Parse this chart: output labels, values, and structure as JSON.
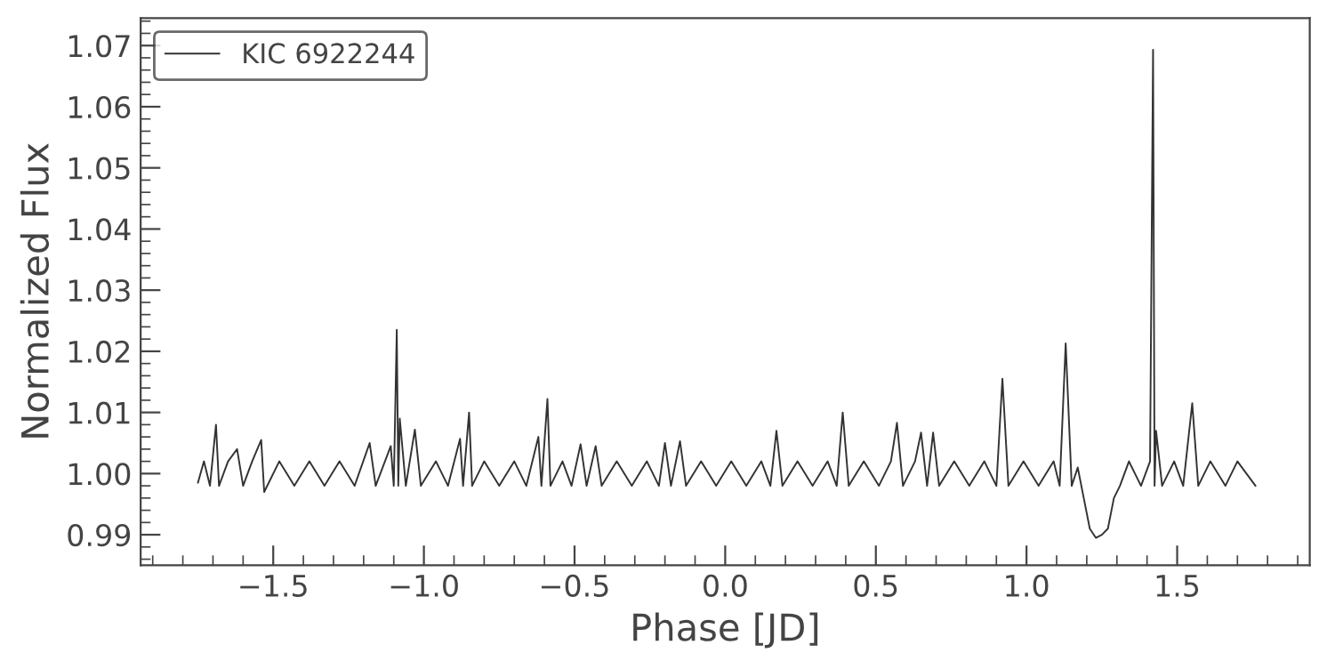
{
  "chart_data": {
    "type": "line",
    "xlabel": "Phase [JD]",
    "ylabel": "Normalized Flux",
    "x": [
      -1.75,
      -1.73,
      -1.71,
      -1.69,
      -1.68,
      -1.65,
      -1.62,
      -1.6,
      -1.57,
      -1.54,
      -1.53,
      -1.48,
      -1.43,
      -1.38,
      -1.33,
      -1.28,
      -1.23,
      -1.18,
      -1.16,
      -1.11,
      -1.1,
      -1.09,
      -1.085,
      -1.08,
      -1.06,
      -1.03,
      -1.01,
      -0.96,
      -0.92,
      -0.88,
      -0.87,
      -0.85,
      -0.84,
      -0.8,
      -0.75,
      -0.7,
      -0.66,
      -0.62,
      -0.61,
      -0.59,
      -0.58,
      -0.54,
      -0.51,
      -0.48,
      -0.46,
      -0.43,
      -0.41,
      -0.36,
      -0.31,
      -0.26,
      -0.22,
      -0.2,
      -0.18,
      -0.15,
      -0.13,
      -0.08,
      -0.03,
      0.02,
      0.07,
      0.12,
      0.15,
      0.17,
      0.19,
      0.24,
      0.29,
      0.34,
      0.37,
      0.39,
      0.41,
      0.46,
      0.51,
      0.55,
      0.57,
      0.59,
      0.63,
      0.65,
      0.67,
      0.69,
      0.71,
      0.76,
      0.81,
      0.86,
      0.9,
      0.92,
      0.94,
      0.99,
      1.04,
      1.09,
      1.11,
      1.13,
      1.15,
      1.17,
      1.19,
      1.21,
      1.23,
      1.25,
      1.27,
      1.29,
      1.31,
      1.34,
      1.38,
      1.41,
      1.42,
      1.425,
      1.43,
      1.45,
      1.49,
      1.52,
      1.55,
      1.57,
      1.61,
      1.66,
      1.7,
      1.76
    ],
    "series": [
      {
        "name": "KIC 6922244",
        "color": "#333333",
        "values": [
          0.9985,
          1.002,
          0.998,
          1.008,
          0.998,
          1.002,
          1.004,
          0.998,
          1.002,
          1.0055,
          0.997,
          1.002,
          0.998,
          1.002,
          0.998,
          1.002,
          0.998,
          1.005,
          0.998,
          1.0045,
          0.998,
          1.0235,
          0.998,
          1.009,
          0.998,
          1.0072,
          0.998,
          1.002,
          0.998,
          1.0057,
          0.998,
          1.01,
          0.998,
          1.002,
          0.998,
          1.002,
          0.998,
          1.006,
          0.998,
          1.0122,
          0.998,
          1.002,
          0.998,
          1.0048,
          0.998,
          1.0045,
          0.998,
          1.002,
          0.998,
          1.002,
          0.998,
          1.005,
          0.998,
          1.0053,
          0.998,
          1.002,
          0.998,
          1.002,
          0.998,
          1.002,
          0.998,
          1.007,
          0.998,
          1.002,
          0.998,
          1.002,
          0.998,
          1.01,
          0.998,
          1.002,
          0.998,
          1.002,
          1.0083,
          0.998,
          1.002,
          1.0067,
          0.998,
          1.0067,
          0.998,
          1.002,
          0.998,
          1.002,
          0.998,
          1.0155,
          0.998,
          1.002,
          0.998,
          1.002,
          0.998,
          1.0213,
          0.998,
          1.001,
          0.996,
          0.991,
          0.9895,
          0.99,
          0.991,
          0.996,
          0.998,
          1.002,
          0.998,
          1.002,
          1.0693,
          0.998,
          1.007,
          0.998,
          1.002,
          0.998,
          1.0115,
          0.998,
          1.002,
          0.998,
          1.002,
          0.998
        ]
      }
    ],
    "xlim": [
      -1.94,
      1.94
    ],
    "ylim": [
      0.985,
      1.0745
    ],
    "xticks": [
      {
        "value": -1.5,
        "label": "−1.5"
      },
      {
        "value": -1.0,
        "label": "−1.0"
      },
      {
        "value": -0.5,
        "label": "−0.5"
      },
      {
        "value": 0.0,
        "label": "0.0"
      },
      {
        "value": 0.5,
        "label": "0.5"
      },
      {
        "value": 1.0,
        "label": "1.0"
      },
      {
        "value": 1.5,
        "label": "1.5"
      }
    ],
    "yticks": [
      {
        "value": 0.99,
        "label": "0.99"
      },
      {
        "value": 1.0,
        "label": "1.00"
      },
      {
        "value": 1.01,
        "label": "1.01"
      },
      {
        "value": 1.02,
        "label": "1.02"
      },
      {
        "value": 1.03,
        "label": "1.03"
      },
      {
        "value": 1.04,
        "label": "1.04"
      },
      {
        "value": 1.05,
        "label": "1.05"
      },
      {
        "value": 1.06,
        "label": "1.06"
      },
      {
        "value": 1.07,
        "label": "1.07"
      }
    ],
    "legend": "top left"
  }
}
